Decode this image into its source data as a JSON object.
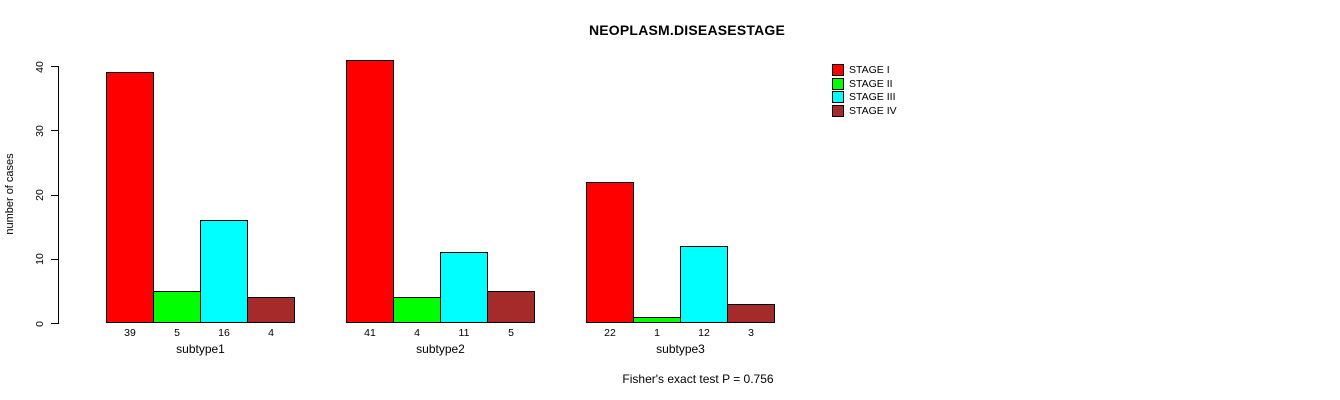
{
  "title": "NEOPLASM.DISEASESTAGE",
  "chart_data": {
    "type": "bar",
    "grouped": true,
    "title": "NEOPLASM.DISEASESTAGE",
    "ylabel": "number of cases",
    "xlabel": "",
    "ylim": [
      0,
      40
    ],
    "yticks": [
      0,
      10,
      20,
      30,
      40
    ],
    "categories": [
      "subtype1",
      "subtype2",
      "subtype3"
    ],
    "series": [
      {
        "name": "STAGE I",
        "color": "#FF0000",
        "values": [
          39,
          41,
          22
        ]
      },
      {
        "name": "STAGE II",
        "color": "#00FF00",
        "values": [
          5,
          4,
          1
        ]
      },
      {
        "name": "STAGE III",
        "color": "#00FFFF",
        "values": [
          16,
          11,
          12
        ]
      },
      {
        "name": "STAGE IV",
        "color": "#A52A2A",
        "values": [
          4,
          5,
          3
        ]
      }
    ],
    "bar_value_labels": [
      [
        "39",
        "5",
        "16",
        "4"
      ],
      [
        "41",
        "4",
        "11",
        "5"
      ],
      [
        "22",
        "1",
        "12",
        "3"
      ]
    ],
    "legend_position": "top-right",
    "grid": false,
    "annotation": "Fisher's exact test P = 0.756"
  }
}
